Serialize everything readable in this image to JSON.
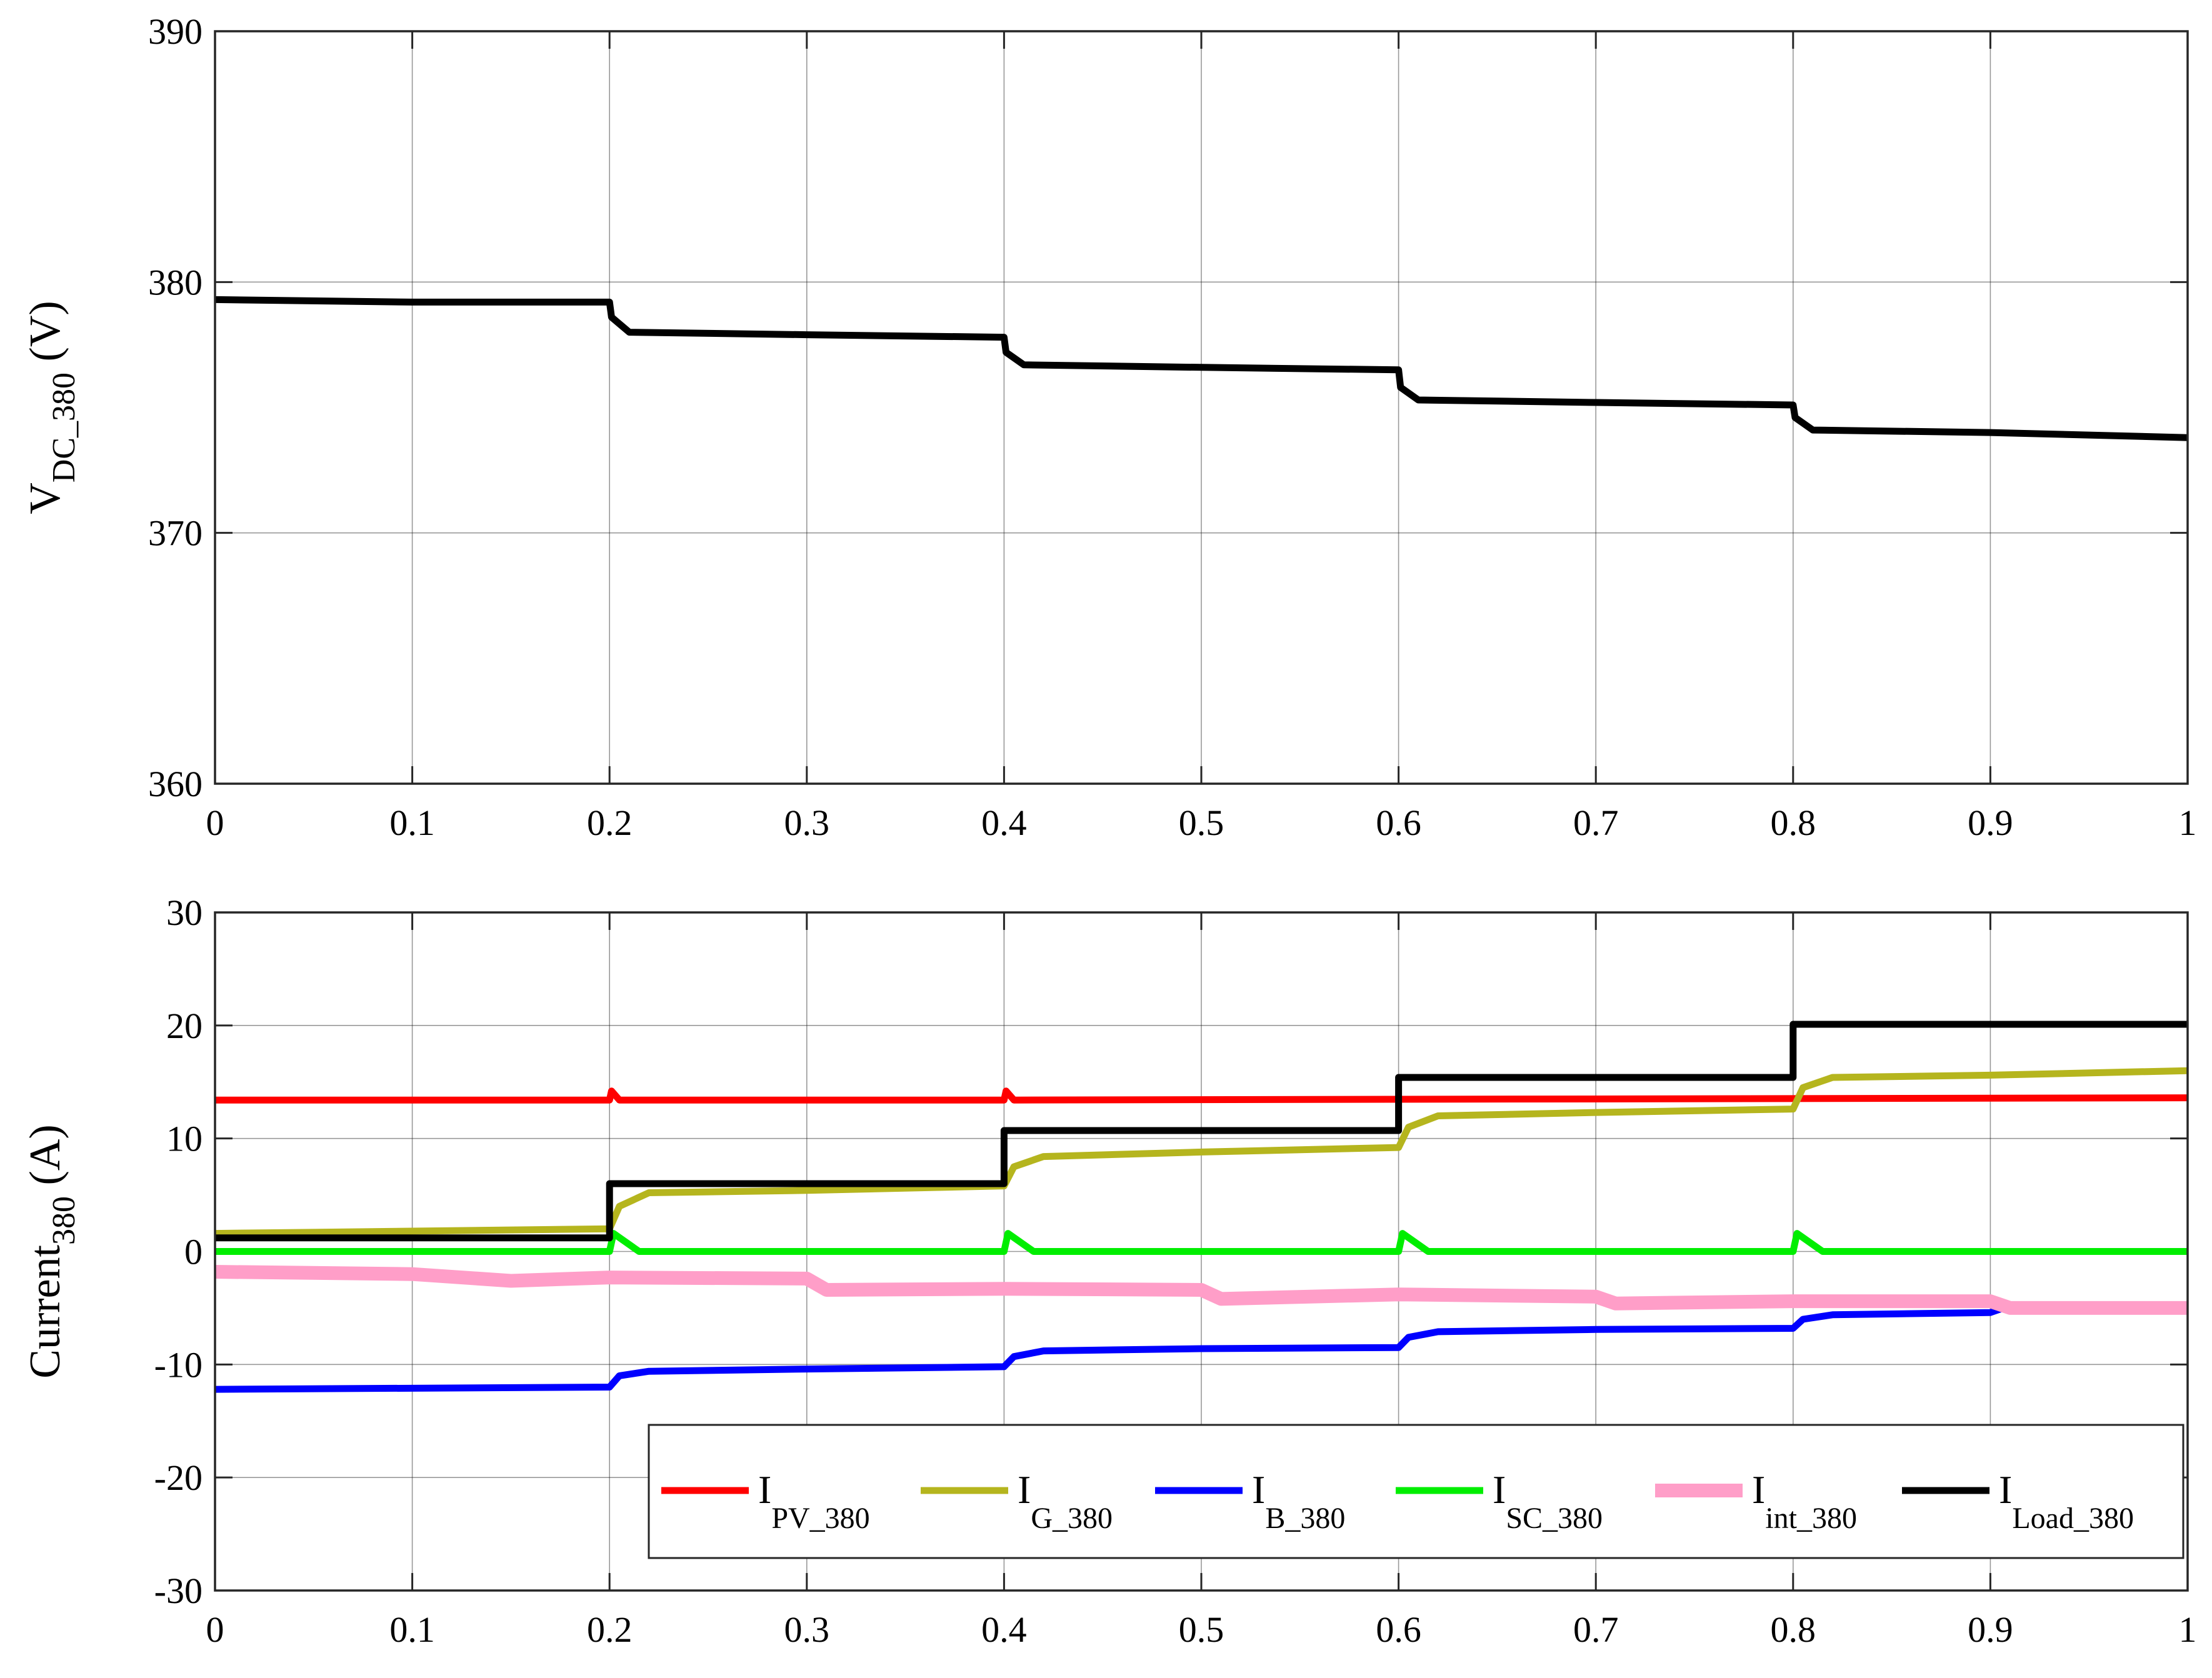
{
  "chart_data": [
    {
      "type": "line",
      "ylabel": "V",
      "ylabel_sub": "DC_380",
      "ylabel_unit": " (V)",
      "xlim": [
        0,
        1
      ],
      "ylim": [
        360,
        390
      ],
      "xticks": [
        "0",
        "0.1",
        "0.2",
        "0.3",
        "0.4",
        "0.5",
        "0.6",
        "0.7",
        "0.8",
        "0.9",
        "1"
      ],
      "yticks": [
        "360",
        "370",
        "380",
        "390"
      ],
      "grid": true,
      "series": [
        {
          "color": "#000000",
          "x": [
            0,
            0.1,
            0.2,
            0.201,
            0.21,
            0.3,
            0.4,
            0.401,
            0.41,
            0.5,
            0.6,
            0.601,
            0.61,
            0.7,
            0.8,
            0.801,
            0.81,
            0.9,
            1.0
          ],
          "values": [
            379.3,
            379.2,
            379.2,
            378.6,
            378.0,
            377.9,
            377.8,
            377.2,
            376.7,
            376.6,
            376.5,
            375.8,
            375.3,
            375.2,
            375.1,
            374.6,
            374.1,
            374.0,
            373.8
          ]
        }
      ]
    },
    {
      "type": "line",
      "ylabel": "Current",
      "ylabel_sub": "380",
      "ylabel_unit": " (A)",
      "xlim": [
        0,
        1
      ],
      "ylim": [
        -30,
        30
      ],
      "xticks": [
        "0",
        "0.1",
        "0.2",
        "0.3",
        "0.4",
        "0.5",
        "0.6",
        "0.7",
        "0.8",
        "0.9",
        "1"
      ],
      "yticks": [
        "-30",
        "-20",
        "-10",
        "0",
        "10",
        "20",
        "30"
      ],
      "grid": true,
      "legend_position": "bottom-right",
      "series": [
        {
          "name": "I",
          "name_sub": "PV_380",
          "color": "#ff0000",
          "x": [
            0,
            0.2,
            0.201,
            0.205,
            0.4,
            0.401,
            0.405,
            1.0
          ],
          "values": [
            13.4,
            13.4,
            14.2,
            13.4,
            13.4,
            14.2,
            13.4,
            13.6
          ]
        },
        {
          "name": "I",
          "name_sub": "G_380",
          "color": "#b5b51e",
          "x": [
            0,
            0.2,
            0.205,
            0.22,
            0.3,
            0.4,
            0.405,
            0.42,
            0.5,
            0.6,
            0.605,
            0.62,
            0.7,
            0.8,
            0.805,
            0.82,
            0.9,
            1.0
          ],
          "values": [
            1.6,
            2.0,
            4.0,
            5.2,
            5.4,
            5.8,
            7.5,
            8.4,
            8.8,
            9.2,
            11.0,
            12.0,
            12.3,
            12.6,
            14.5,
            15.4,
            15.6,
            16.0
          ]
        },
        {
          "name": "I",
          "name_sub": "B_380",
          "color": "#0000ff",
          "x": [
            0,
            0.2,
            0.205,
            0.22,
            0.3,
            0.4,
            0.405,
            0.42,
            0.5,
            0.6,
            0.605,
            0.62,
            0.7,
            0.8,
            0.805,
            0.82,
            0.9,
            0.91
          ],
          "values": [
            -12.2,
            -12.0,
            -11.0,
            -10.6,
            -10.4,
            -10.2,
            -9.3,
            -8.8,
            -8.6,
            -8.5,
            -7.6,
            -7.1,
            -6.9,
            -6.8,
            -6.0,
            -5.6,
            -5.4,
            -4.8
          ]
        },
        {
          "name": "I",
          "name_sub": "SC_380",
          "color": "#00ee00",
          "x": [
            0,
            0.2,
            0.202,
            0.215,
            0.4,
            0.402,
            0.415,
            0.6,
            0.602,
            0.615,
            0.8,
            0.802,
            0.815,
            1.0
          ],
          "values": [
            0,
            0,
            1.6,
            0,
            0,
            1.6,
            0,
            0,
            1.6,
            0,
            0,
            1.6,
            0,
            0
          ]
        },
        {
          "name": "I",
          "name_sub": "int_380",
          "color": "#ff9ec8",
          "x": [
            0,
            0.1,
            0.15,
            0.2,
            0.3,
            0.31,
            0.4,
            0.5,
            0.51,
            0.6,
            0.7,
            0.71,
            0.8,
            0.9,
            0.91,
            1.0
          ],
          "values": [
            -1.8,
            -2.0,
            -2.6,
            -2.3,
            -2.4,
            -3.4,
            -3.3,
            -3.4,
            -4.2,
            -3.8,
            -4.0,
            -4.6,
            -4.4,
            -4.4,
            -5.0,
            -5.0
          ]
        },
        {
          "name": "I",
          "name_sub": "Load_380",
          "color": "#000000",
          "x": [
            0,
            0.2,
            0.2,
            0.4,
            0.4,
            0.6,
            0.6,
            0.8,
            0.8,
            1.0
          ],
          "values": [
            1.2,
            1.2,
            6.0,
            6.0,
            10.7,
            10.7,
            15.4,
            15.4,
            20.1,
            20.1
          ]
        }
      ]
    }
  ]
}
